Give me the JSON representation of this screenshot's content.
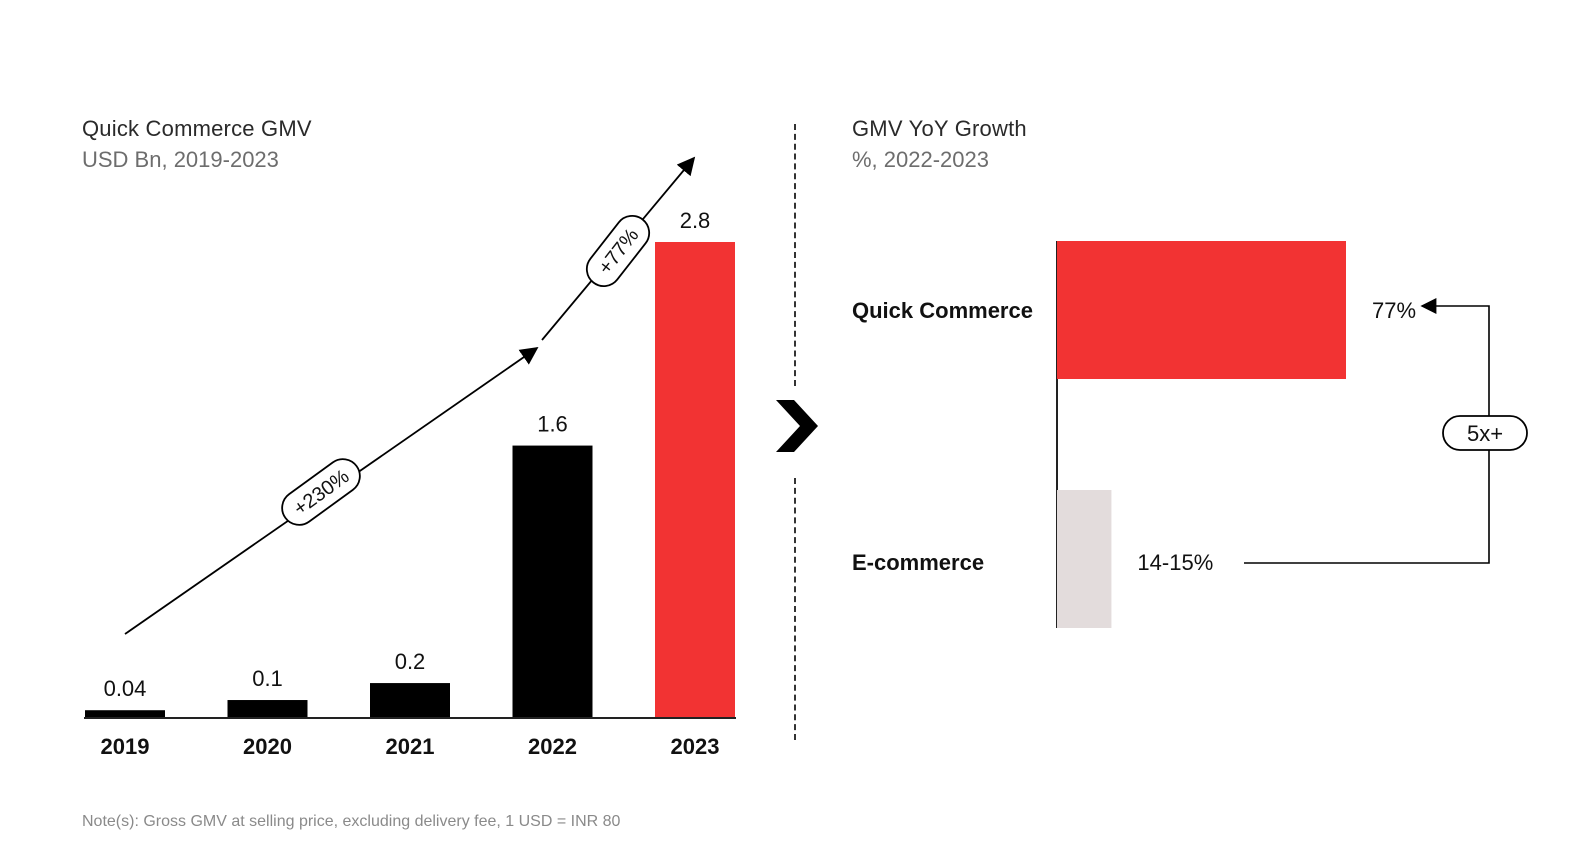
{
  "left_chart": {
    "title": "Quick Commerce GMV",
    "subtitle": "USD Bn, 2019-2023",
    "growth_labels": {
      "first": "+230%",
      "second": "+77%"
    }
  },
  "right_chart": {
    "title": "GMV YoY Growth",
    "subtitle": "%, 2022-2023",
    "comparison_label": "5x+"
  },
  "note": "Note(s): Gross GMV at selling price, excluding delivery fee, 1 USD = INR 80",
  "colors": {
    "accent_red": "#f23333",
    "bar_black": "#000000",
    "bar_grey": "#e3dcdc"
  },
  "chart_data": [
    {
      "type": "bar",
      "title": "Quick Commerce GMV",
      "subtitle": "USD Bn, 2019-2023",
      "categories": [
        "2019",
        "2020",
        "2021",
        "2022",
        "2023"
      ],
      "values": [
        0.04,
        0.1,
        0.2,
        1.6,
        2.8
      ],
      "value_labels": [
        "0.04",
        "0.1",
        "0.2",
        "1.6",
        "2.8"
      ],
      "highlight_index": 4,
      "ylim": [
        0,
        2.8
      ],
      "grid": false
    },
    {
      "type": "bar",
      "orientation": "horizontal",
      "title": "GMV YoY Growth",
      "subtitle": "%, 2022-2023",
      "categories": [
        "Quick Commerce",
        "E-commerce"
      ],
      "values": [
        77,
        14.5
      ],
      "value_labels": [
        "77%",
        "14-15%"
      ],
      "xlim": [
        0,
        77
      ],
      "grid": false
    }
  ]
}
